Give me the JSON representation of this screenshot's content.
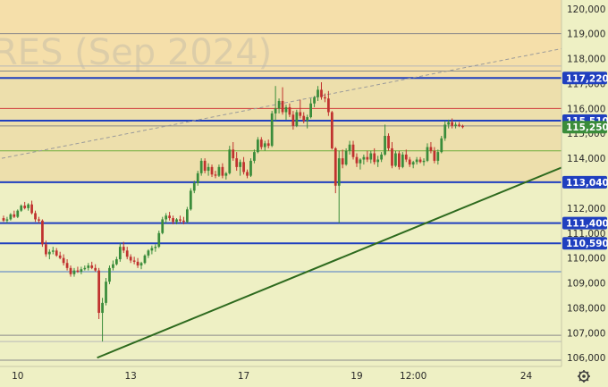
{
  "chart_data": {
    "type": "candlestick",
    "watermark": "RES (Sep 2024)",
    "y_ticks": [
      106000,
      107000,
      108000,
      109000,
      110000,
      111000,
      112000,
      113000,
      114000,
      115000,
      116000,
      117000,
      118000,
      119000,
      120000
    ],
    "y_tick_labels": [
      "106,000",
      "107,000",
      "108,000",
      "109,000",
      "110,000",
      "111,000",
      "112,000",
      "113,000",
      "114,000",
      "115,000",
      "116,000",
      "117,000",
      "118,000",
      "119,000",
      "120,000"
    ],
    "ylim": [
      105650,
      120350
    ],
    "x_tick_labels": [
      "10",
      "13",
      "17",
      "19",
      "12:00",
      "24"
    ],
    "x_tick_bars": [
      4,
      36,
      68,
      100,
      116,
      148
    ],
    "bar_count": 164,
    "horizontal_levels": [
      {
        "value": 117220,
        "label": "117,220",
        "color": "#1f3fbf",
        "badge": true
      },
      {
        "value": 115510,
        "label": "115,510",
        "color": "#1f3fbf",
        "badge": true
      },
      {
        "value": 113040,
        "label": "113,040",
        "color": "#1f3fbf",
        "badge": true
      },
      {
        "value": 111400,
        "label": "111,400",
        "color": "#1f3fbf",
        "badge": true
      },
      {
        "value": 110590,
        "label": "110,590",
        "color": "#1f3fbf",
        "badge": true
      },
      {
        "value": 116000,
        "color": "#d03a3a",
        "badge": false
      },
      {
        "value": 114300,
        "color": "#6fae3c",
        "badge": false
      },
      {
        "value": 119000,
        "color": "#8a8a8a",
        "badge": false
      },
      {
        "value": 117500,
        "color": "#8a8a8a",
        "badge": false
      },
      {
        "value": 117700,
        "color": "#b8b8b8",
        "badge": false
      },
      {
        "value": 115300,
        "color": "#8a8a8a",
        "badge": false
      },
      {
        "value": 109450,
        "color": "#4a78c8",
        "badge": false
      },
      {
        "value": 106900,
        "color": "#8a8a8a",
        "badge": false
      },
      {
        "value": 106650,
        "color": "#b8b8b8",
        "badge": false
      },
      {
        "value": 105900,
        "color": "#8a8a8a",
        "badge": false
      }
    ],
    "zones": [
      {
        "from": 117220,
        "to": 120350,
        "color": "#f6dca6"
      },
      {
        "from": 113040,
        "to": 117220,
        "color": "#ecdca8"
      }
    ],
    "last_price": {
      "value": 115250,
      "label": "115,250",
      "color": "#3a8c3a"
    },
    "trend_lines": [
      {
        "from": [
          27,
          106000
        ],
        "to": [
          164,
          113950
        ],
        "color": "#2d6a1e",
        "style": "solid"
      },
      {
        "from": [
          0,
          114000
        ],
        "to": [
          164,
          118550
        ],
        "color": "#9a9a9a",
        "style": "dashed"
      }
    ],
    "up_color": "#3a8c3a",
    "down_color": "#c0322f",
    "ohlc": [
      [
        111600,
        111700,
        111450,
        111500
      ],
      [
        111500,
        111650,
        111400,
        111550
      ],
      [
        111550,
        111800,
        111500,
        111750
      ],
      [
        111750,
        111900,
        111600,
        111650
      ],
      [
        111650,
        111950,
        111600,
        111900
      ],
      [
        111900,
        112150,
        111850,
        112100
      ],
      [
        112100,
        112250,
        111950,
        112000
      ],
      [
        112000,
        112200,
        111900,
        112150
      ],
      [
        112150,
        112300,
        111750,
        111800
      ],
      [
        111800,
        111900,
        111450,
        111550
      ],
      [
        111550,
        111650,
        111400,
        111500
      ],
      [
        111500,
        111550,
        110450,
        110550
      ],
      [
        110550,
        110700,
        110050,
        110150
      ],
      [
        110150,
        110350,
        109950,
        110250
      ],
      [
        110250,
        110450,
        110150,
        110300
      ],
      [
        110300,
        110400,
        110050,
        110100
      ],
      [
        110100,
        110250,
        109950,
        110000
      ],
      [
        110000,
        110150,
        109700,
        109800
      ],
      [
        109800,
        109950,
        109500,
        109600
      ],
      [
        109600,
        109700,
        109250,
        109350
      ],
      [
        109350,
        109600,
        109250,
        109500
      ],
      [
        109500,
        109650,
        109400,
        109450
      ],
      [
        109450,
        109650,
        109350,
        109550
      ],
      [
        109550,
        109700,
        109500,
        109600
      ],
      [
        109600,
        109800,
        109500,
        109700
      ],
      [
        109700,
        109850,
        109550,
        109600
      ],
      [
        109600,
        109750,
        109450,
        109500
      ],
      [
        109500,
        109600,
        107550,
        107800
      ],
      [
        107800,
        108400,
        106650,
        108200
      ],
      [
        108200,
        109200,
        108100,
        109050
      ],
      [
        109050,
        109700,
        108950,
        109600
      ],
      [
        109600,
        109900,
        109500,
        109750
      ],
      [
        109750,
        110050,
        109700,
        109950
      ],
      [
        109950,
        110600,
        109850,
        110450
      ],
      [
        110450,
        110650,
        110200,
        110300
      ],
      [
        110300,
        110450,
        109950,
        110050
      ],
      [
        110050,
        110150,
        109800,
        109900
      ],
      [
        109900,
        110050,
        109750,
        109850
      ],
      [
        109850,
        110000,
        109600,
        109700
      ],
      [
        109700,
        109850,
        109550,
        109800
      ],
      [
        109800,
        110150,
        109750,
        110100
      ],
      [
        110100,
        110350,
        110000,
        110300
      ],
      [
        110300,
        110500,
        110150,
        110400
      ],
      [
        110400,
        110550,
        110250,
        110450
      ],
      [
        110450,
        111100,
        110400,
        111000
      ],
      [
        111000,
        111650,
        110950,
        111550
      ],
      [
        111550,
        111800,
        111400,
        111700
      ],
      [
        111700,
        111850,
        111500,
        111600
      ],
      [
        111600,
        111700,
        111350,
        111450
      ],
      [
        111450,
        111600,
        111350,
        111550
      ],
      [
        111550,
        111700,
        111400,
        111500
      ],
      [
        111500,
        111650,
        111350,
        111450
      ],
      [
        111450,
        112050,
        111400,
        111950
      ],
      [
        111950,
        112800,
        111900,
        112700
      ],
      [
        112700,
        113100,
        112600,
        113000
      ],
      [
        113000,
        113500,
        112900,
        113400
      ],
      [
        113400,
        114000,
        113300,
        113900
      ],
      [
        113900,
        114000,
        113400,
        113500
      ],
      [
        113500,
        113800,
        113300,
        113650
      ],
      [
        113650,
        113750,
        113250,
        113350
      ],
      [
        113350,
        113500,
        113200,
        113300
      ],
      [
        113300,
        113750,
        113250,
        113650
      ],
      [
        113650,
        113800,
        113200,
        113300
      ],
      [
        113300,
        113450,
        113150,
        113400
      ],
      [
        113400,
        114500,
        113350,
        114350
      ],
      [
        114350,
        114650,
        113900,
        114000
      ],
      [
        114000,
        114250,
        113500,
        113650
      ],
      [
        113650,
        113950,
        113300,
        113850
      ],
      [
        113850,
        114050,
        113350,
        113450
      ],
      [
        113450,
        113550,
        113200,
        113300
      ],
      [
        113300,
        114000,
        113250,
        113900
      ],
      [
        113900,
        114350,
        113800,
        114250
      ],
      [
        114250,
        114850,
        114200,
        114750
      ],
      [
        114750,
        114850,
        114350,
        114450
      ],
      [
        114450,
        114700,
        114300,
        114600
      ],
      [
        114600,
        114750,
        114400,
        114500
      ],
      [
        114500,
        115900,
        114450,
        115800
      ],
      [
        115800,
        116900,
        115500,
        116000
      ],
      [
        116000,
        116400,
        115800,
        116300
      ],
      [
        116300,
        116850,
        115750,
        115850
      ],
      [
        115850,
        116150,
        115550,
        116050
      ],
      [
        116050,
        116200,
        115650,
        115750
      ],
      [
        115750,
        115900,
        115150,
        115300
      ],
      [
        115300,
        115950,
        115250,
        115850
      ],
      [
        115850,
        116350,
        115600,
        115700
      ],
      [
        115700,
        115850,
        115400,
        115500
      ],
      [
        115500,
        115750,
        115200,
        115650
      ],
      [
        115650,
        116400,
        115600,
        116200
      ],
      [
        116200,
        116500,
        116050,
        116450
      ],
      [
        116450,
        116900,
        116300,
        116750
      ],
      [
        116750,
        117050,
        116350,
        116450
      ],
      [
        116450,
        116600,
        116250,
        116400
      ],
      [
        116400,
        116700,
        115700,
        115850
      ],
      [
        115850,
        115900,
        114350,
        114400
      ],
      [
        114400,
        114450,
        112600,
        112900
      ],
      [
        112900,
        114300,
        111400,
        114000
      ],
      [
        114000,
        114350,
        113600,
        113750
      ],
      [
        113750,
        114400,
        113700,
        114300
      ],
      [
        114300,
        114700,
        114150,
        114550
      ],
      [
        114550,
        114700,
        113950,
        114050
      ],
      [
        114050,
        114200,
        113650,
        113800
      ],
      [
        113800,
        114000,
        113550,
        113950
      ],
      [
        113950,
        114150,
        113750,
        114050
      ],
      [
        114050,
        114300,
        113850,
        113950
      ],
      [
        113950,
        114300,
        113800,
        114200
      ],
      [
        114200,
        114400,
        113750,
        113850
      ],
      [
        113850,
        114100,
        113650,
        113950
      ],
      [
        113950,
        114250,
        113850,
        114150
      ],
      [
        114150,
        115350,
        114100,
        114900
      ],
      [
        114900,
        115000,
        114300,
        114400
      ],
      [
        114400,
        114650,
        113600,
        113700
      ],
      [
        113700,
        114300,
        113650,
        114200
      ],
      [
        114200,
        114300,
        113550,
        113650
      ],
      [
        113650,
        114250,
        113600,
        114150
      ],
      [
        114150,
        114350,
        113850,
        113950
      ],
      [
        113950,
        114050,
        113650,
        113750
      ],
      [
        113750,
        113900,
        113600,
        113850
      ],
      [
        113850,
        114050,
        113750,
        113950
      ],
      [
        113950,
        114050,
        113800,
        113850
      ],
      [
        113850,
        114000,
        113700,
        113900
      ],
      [
        113900,
        114600,
        113850,
        114450
      ],
      [
        114450,
        114650,
        114200,
        114300
      ],
      [
        114300,
        114450,
        113800,
        113900
      ],
      [
        113900,
        114350,
        113750,
        114250
      ],
      [
        114250,
        114900,
        114200,
        114800
      ],
      [
        114800,
        115500,
        114700,
        115350
      ],
      [
        115350,
        115550,
        115200,
        115450
      ],
      [
        115450,
        115600,
        115200,
        115300
      ],
      [
        115300,
        115450,
        115200,
        115350
      ],
      [
        115350,
        115450,
        115250,
        115300
      ],
      [
        115300,
        115350,
        115200,
        115250
      ]
    ]
  }
}
